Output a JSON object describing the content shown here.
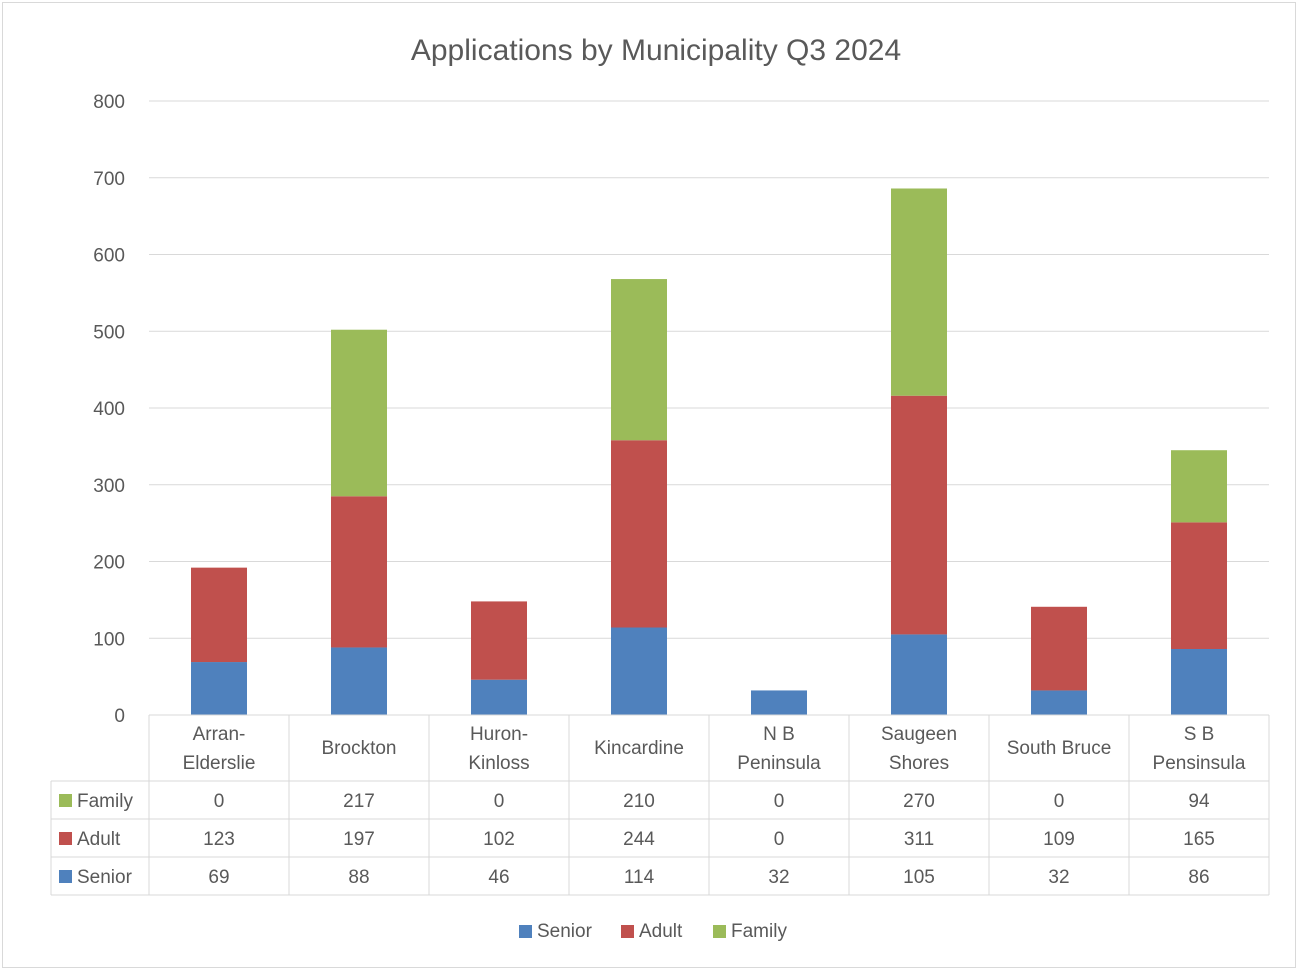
{
  "chart_data": {
    "type": "bar",
    "stacked": true,
    "title": "Applications by Municipality Q3 2024",
    "categories": [
      [
        "Arran-",
        "Elderslie"
      ],
      [
        "Brockton"
      ],
      [
        "Huron-",
        "Kinloss"
      ],
      [
        "Kincardine"
      ],
      [
        "N B",
        "Peninsula"
      ],
      [
        "Saugeen",
        "Shores"
      ],
      [
        "South Bruce"
      ],
      [
        "S B",
        "Pensinsula"
      ]
    ],
    "series": [
      {
        "name": "Senior",
        "color": "#4f81bd",
        "values": [
          69,
          88,
          46,
          114,
          32,
          105,
          32,
          86
        ]
      },
      {
        "name": "Adult",
        "color": "#c0504d",
        "values": [
          123,
          197,
          102,
          244,
          0,
          311,
          109,
          165
        ]
      },
      {
        "name": "Family",
        "color": "#9bbb59",
        "values": [
          0,
          217,
          0,
          210,
          0,
          270,
          0,
          94
        ]
      }
    ],
    "ylim": [
      0,
      800
    ],
    "yticks": [
      0,
      100,
      200,
      300,
      400,
      500,
      600,
      700,
      800
    ],
    "grid": true,
    "data_table": true,
    "legend_position": "bottom"
  }
}
